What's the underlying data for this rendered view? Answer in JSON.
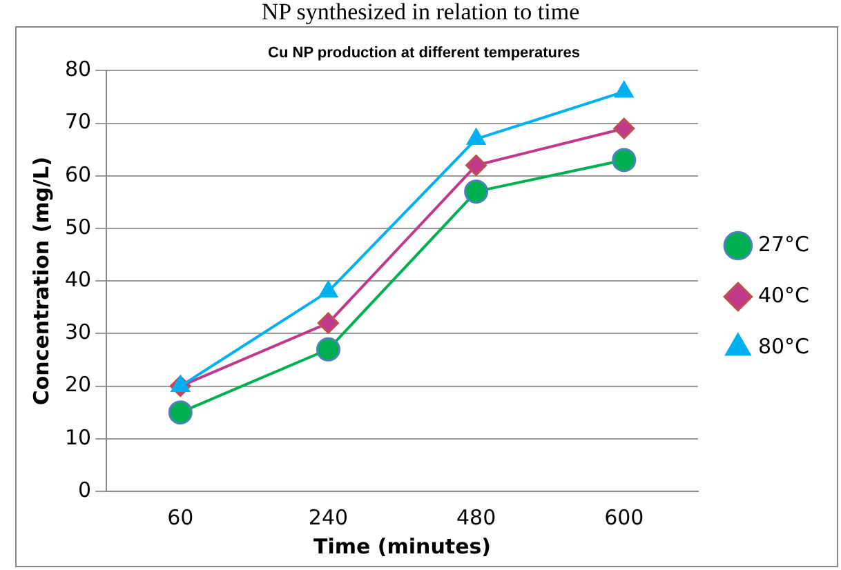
{
  "chart_data": {
    "type": "line",
    "title": "Cu NP production at different temperatures",
    "annotations": [
      "NP synthesized in relation to time"
    ],
    "xlabel": "Time (minutes)",
    "ylabel": "Concentration (mg/L)",
    "categories": [
      "60",
      "240",
      "480",
      "600"
    ],
    "series": [
      {
        "name": "27°C",
        "color": "#00b050",
        "marker": "circle",
        "values": [
          15,
          27,
          57,
          63
        ]
      },
      {
        "name": "40°C",
        "color": "#c0398c",
        "marker": "diamond",
        "values": [
          20,
          32,
          62,
          69
        ]
      },
      {
        "name": "80°C",
        "color": "#00b0f0",
        "marker": "triangle",
        "values": [
          20,
          38,
          67,
          76
        ]
      }
    ],
    "ylim": [
      0,
      80
    ],
    "yticks": [
      0,
      10,
      20,
      30,
      40,
      50,
      60,
      70,
      80
    ],
    "grid": "y",
    "legend": "right"
  }
}
